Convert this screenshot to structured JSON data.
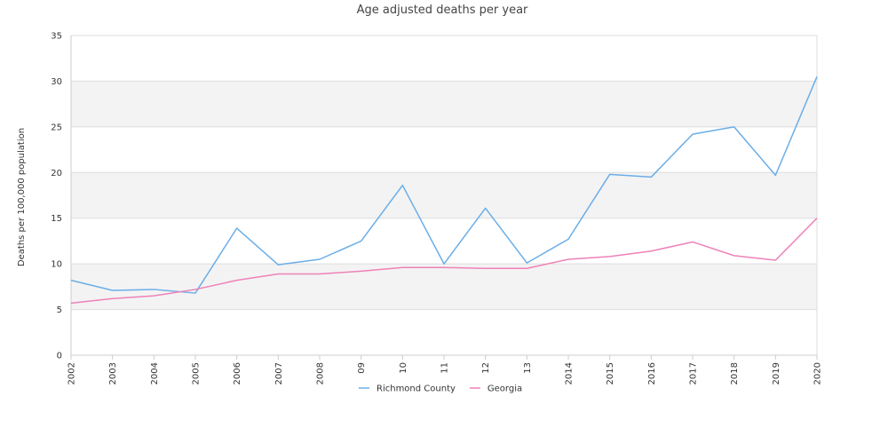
{
  "chart_data": {
    "type": "line",
    "title": "Age adjusted deaths per year",
    "xlabel": "",
    "ylabel": "Deaths per 100,000 population",
    "ylim": [
      0,
      35
    ],
    "yticks": [
      0,
      5,
      10,
      15,
      20,
      25,
      30,
      35
    ],
    "categories": [
      "2002",
      "2003",
      "2004",
      "2005",
      "2006",
      "2007",
      "2008",
      "09",
      "10",
      "11",
      "12",
      "13",
      "2014",
      "2015",
      "2016",
      "2017",
      "2018",
      "2019",
      "2020"
    ],
    "series": [
      {
        "name": "Richmond County",
        "color": "#6aaee8",
        "values": [
          8.2,
          7.1,
          7.2,
          6.8,
          13.9,
          9.9,
          10.5,
          12.5,
          18.6,
          10.0,
          16.1,
          10.1,
          12.7,
          19.8,
          19.5,
          24.2,
          25.0,
          19.7,
          30.5
        ]
      },
      {
        "name": "Georgia",
        "color": "#ee82b8",
        "values": [
          5.7,
          6.2,
          6.5,
          7.2,
          8.2,
          8.9,
          8.9,
          9.2,
          9.6,
          9.6,
          9.5,
          9.5,
          10.5,
          10.8,
          11.4,
          12.4,
          10.9,
          10.4,
          15.0
        ]
      }
    ],
    "grid": true,
    "band_colors": [
      "#ffffff",
      "#f3f3f3"
    ],
    "gridline_color": "#dddddd",
    "legend_position": "bottom-center"
  }
}
